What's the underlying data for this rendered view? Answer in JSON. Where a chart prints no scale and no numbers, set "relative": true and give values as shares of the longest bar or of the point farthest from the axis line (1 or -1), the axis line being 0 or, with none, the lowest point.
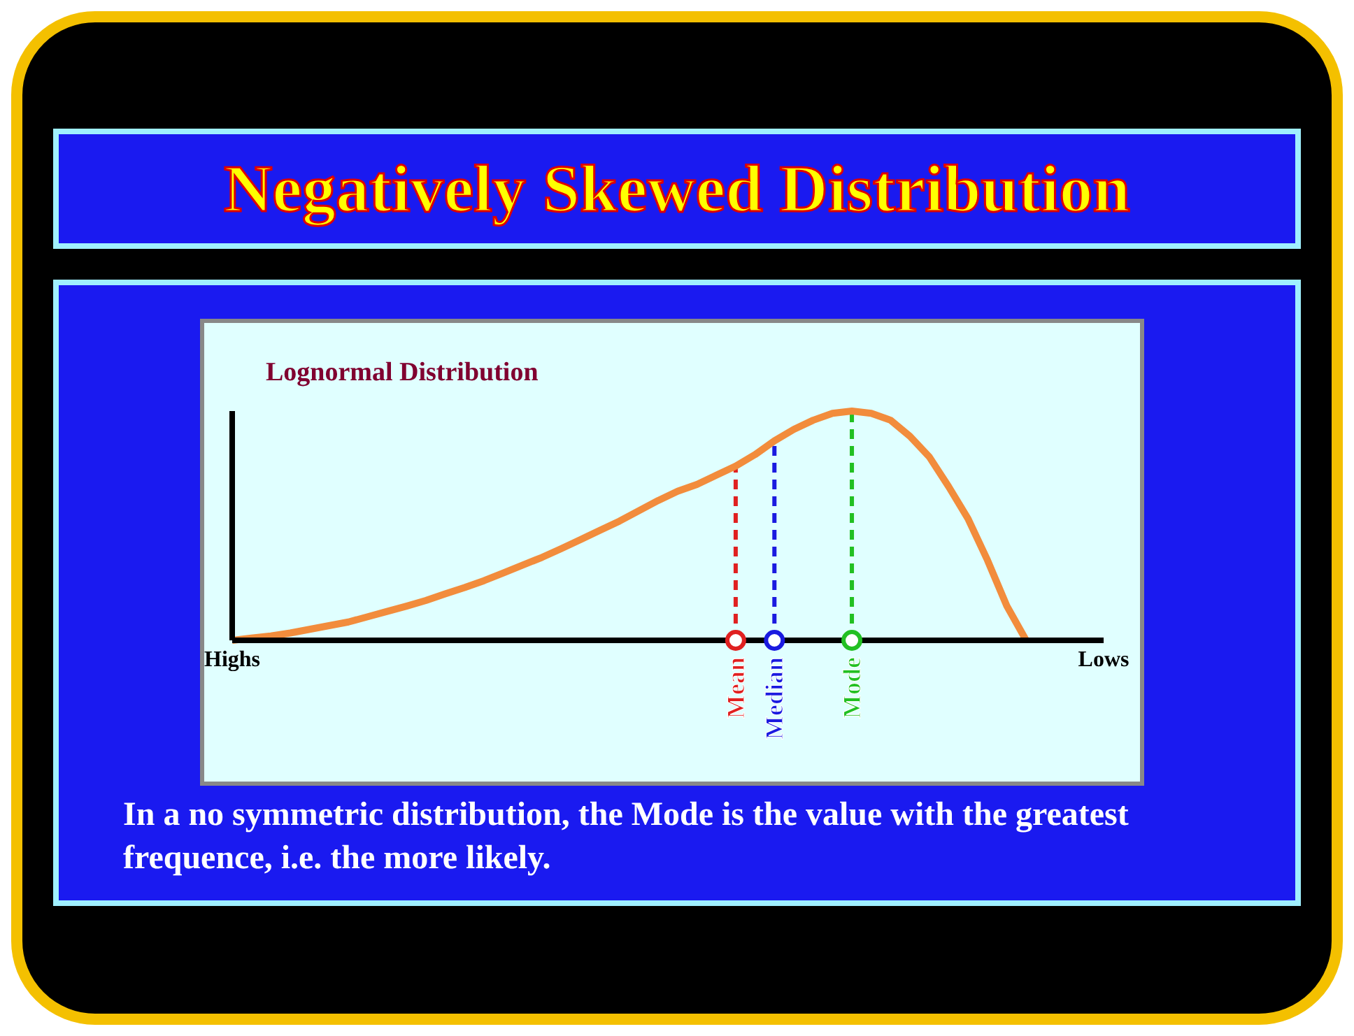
{
  "chart_data": {
    "type": "line",
    "title": "Negatively Skewed Distribution",
    "subtitle": "Lognormal Distribution",
    "relative": true,
    "categories": [
      "Highs",
      null,
      null,
      null,
      null,
      null,
      null,
      null,
      null,
      null,
      null,
      null,
      null,
      null,
      null,
      null,
      null,
      null,
      null,
      null,
      null,
      null,
      null,
      null,
      null,
      null,
      "Mean",
      null,
      "Median",
      null,
      null,
      null,
      "Mode",
      null,
      null,
      null,
      null,
      null,
      null,
      null,
      null,
      null,
      null,
      null,
      null,
      "Lows"
    ],
    "series": [
      {
        "color": "#f28c3c",
        "values": [
          0,
          0.01,
          0.019,
          0.032,
          0.048,
          0.064,
          0.08,
          0.103,
          0.126,
          0.149,
          0.174,
          0.203,
          0.23,
          0.26,
          0.294,
          0.328,
          0.362,
          0.4,
          0.44,
          0.48,
          0.52,
          0.565,
          0.61,
          0.65,
          0.68,
          0.72,
          0.76,
          0.81,
          0.87,
          0.92,
          0.96,
          0.99,
          1,
          0.99,
          0.96,
          0.89,
          0.8,
          0.67,
          0.53,
          0.35,
          0.15,
          0,
          null,
          null,
          null,
          null
        ]
      }
    ],
    "ref_lines": [
      {
        "axis": "x",
        "value": "Mean",
        "color": "#e02020",
        "line_style": "dashed"
      },
      {
        "axis": "x",
        "value": "Median",
        "color": "#1a1ae0",
        "line_style": "dashed"
      },
      {
        "axis": "x",
        "value": "Mode",
        "color": "#22c022",
        "line_style": "dashed"
      }
    ],
    "annotations": [
      "In a no symmetric distribution, the Mode is the value with the greatest frequence, i.e. the more likely."
    ],
    "grid": false,
    "legend": false,
    "marker": "none",
    "line_style": "solid"
  }
}
